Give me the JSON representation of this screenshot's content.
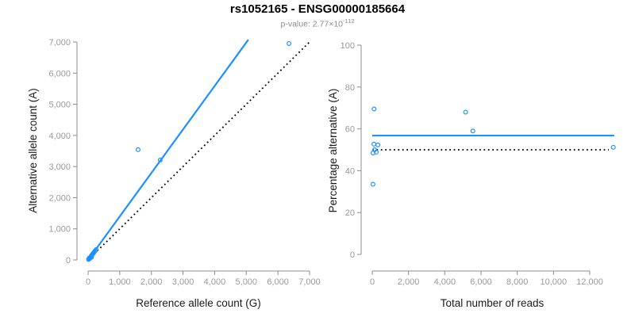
{
  "header": {
    "title": "rs1052165 - ENSG00000185664",
    "p_value_base": "p-value: 2.77×10",
    "p_value_exponent": "-112"
  },
  "colors": {
    "point_blue": "#1E90FF",
    "fit_blue": "#1E90FF",
    "line_black": "#000000",
    "axis_line": "#8C8C8C",
    "tick_label": "#9A9A9A",
    "axis_title": "#1A1A1A",
    "title": "#000000",
    "subtitle": "#8C8C8C",
    "background": "#FFFFFF"
  },
  "chart_data": [
    {
      "type": "scatter",
      "name": "allele-counts",
      "marker": "open-circle",
      "grid": false,
      "legend": null,
      "xlabel": "Reference allele count (G)",
      "ylabel": "Alternative allele count (A)",
      "xlim": [
        0,
        7000
      ],
      "ylim": [
        0,
        7000
      ],
      "xticks": [
        0,
        1000,
        2000,
        3000,
        4000,
        5000,
        6000,
        7000
      ],
      "xtick_labels": [
        "0",
        "1,000",
        "2,000",
        "3,000",
        "4,000",
        "5,000",
        "6,000",
        "7,000"
      ],
      "yticks": [
        0,
        1000,
        2000,
        3000,
        4000,
        5000,
        6000,
        7000
      ],
      "ytick_labels": [
        "0",
        "1,000",
        "2,000",
        "3,000",
        "4,000",
        "5,000",
        "6,000",
        "7,000"
      ],
      "points": [
        [
          15,
          15
        ],
        [
          25,
          30
        ],
        [
          40,
          45
        ],
        [
          55,
          65
        ],
        [
          70,
          85
        ],
        [
          85,
          105
        ],
        [
          35,
          60
        ],
        [
          60,
          50
        ],
        [
          100,
          130
        ],
        [
          110,
          90
        ],
        [
          120,
          160
        ],
        [
          140,
          185
        ],
        [
          165,
          215
        ],
        [
          190,
          250
        ],
        [
          220,
          290
        ],
        [
          255,
          335
        ],
        [
          1580,
          3540
        ],
        [
          2280,
          3210
        ],
        [
          6350,
          6950
        ]
      ],
      "lines": [
        {
          "name": "fit-line",
          "style": "solid",
          "color": "fit_blue",
          "points": [
            [
              0,
              0
            ],
            [
              5065,
              7075
            ]
          ]
        },
        {
          "name": "identity-line",
          "style": "dotted",
          "color": "line_black",
          "points": [
            [
              0,
              0
            ],
            [
              7000,
              7000
            ]
          ]
        }
      ]
    },
    {
      "type": "scatter",
      "name": "percentage-vs-coverage",
      "marker": "open-circle",
      "grid": false,
      "legend": null,
      "xlabel": "Total number of reads",
      "ylabel": "Percentage alternative (A)",
      "xlim": [
        0,
        13350
      ],
      "ylim": [
        0,
        100
      ],
      "xticks": [
        0,
        2000,
        4000,
        6000,
        8000,
        10000,
        12000
      ],
      "xtick_labels": [
        "0",
        "2,000",
        "4,000",
        "6,000",
        "8,000",
        "10,000",
        "12,000"
      ],
      "yticks": [
        0,
        20,
        40,
        60,
        80,
        100
      ],
      "ytick_labels": [
        "0",
        "20",
        "40",
        "60",
        "80",
        "100"
      ],
      "points": [
        [
          100,
          69.5
        ],
        [
          5150,
          68
        ],
        [
          5550,
          59
        ],
        [
          90,
          52.7
        ],
        [
          310,
          52.3
        ],
        [
          13300,
          51.2
        ],
        [
          130,
          50.0
        ],
        [
          220,
          48.9
        ],
        [
          40,
          48.5
        ],
        [
          40,
          33.5
        ]
      ],
      "lines": [
        {
          "name": "mean-line",
          "style": "solid",
          "color": "fit_blue",
          "points": [
            [
              0,
              56.8
            ],
            [
              13350,
              56.8
            ]
          ]
        },
        {
          "name": "null-line",
          "style": "dotted",
          "color": "line_black",
          "points": [
            [
              0,
              50
            ],
            [
              13050,
              50
            ]
          ]
        }
      ]
    }
  ]
}
